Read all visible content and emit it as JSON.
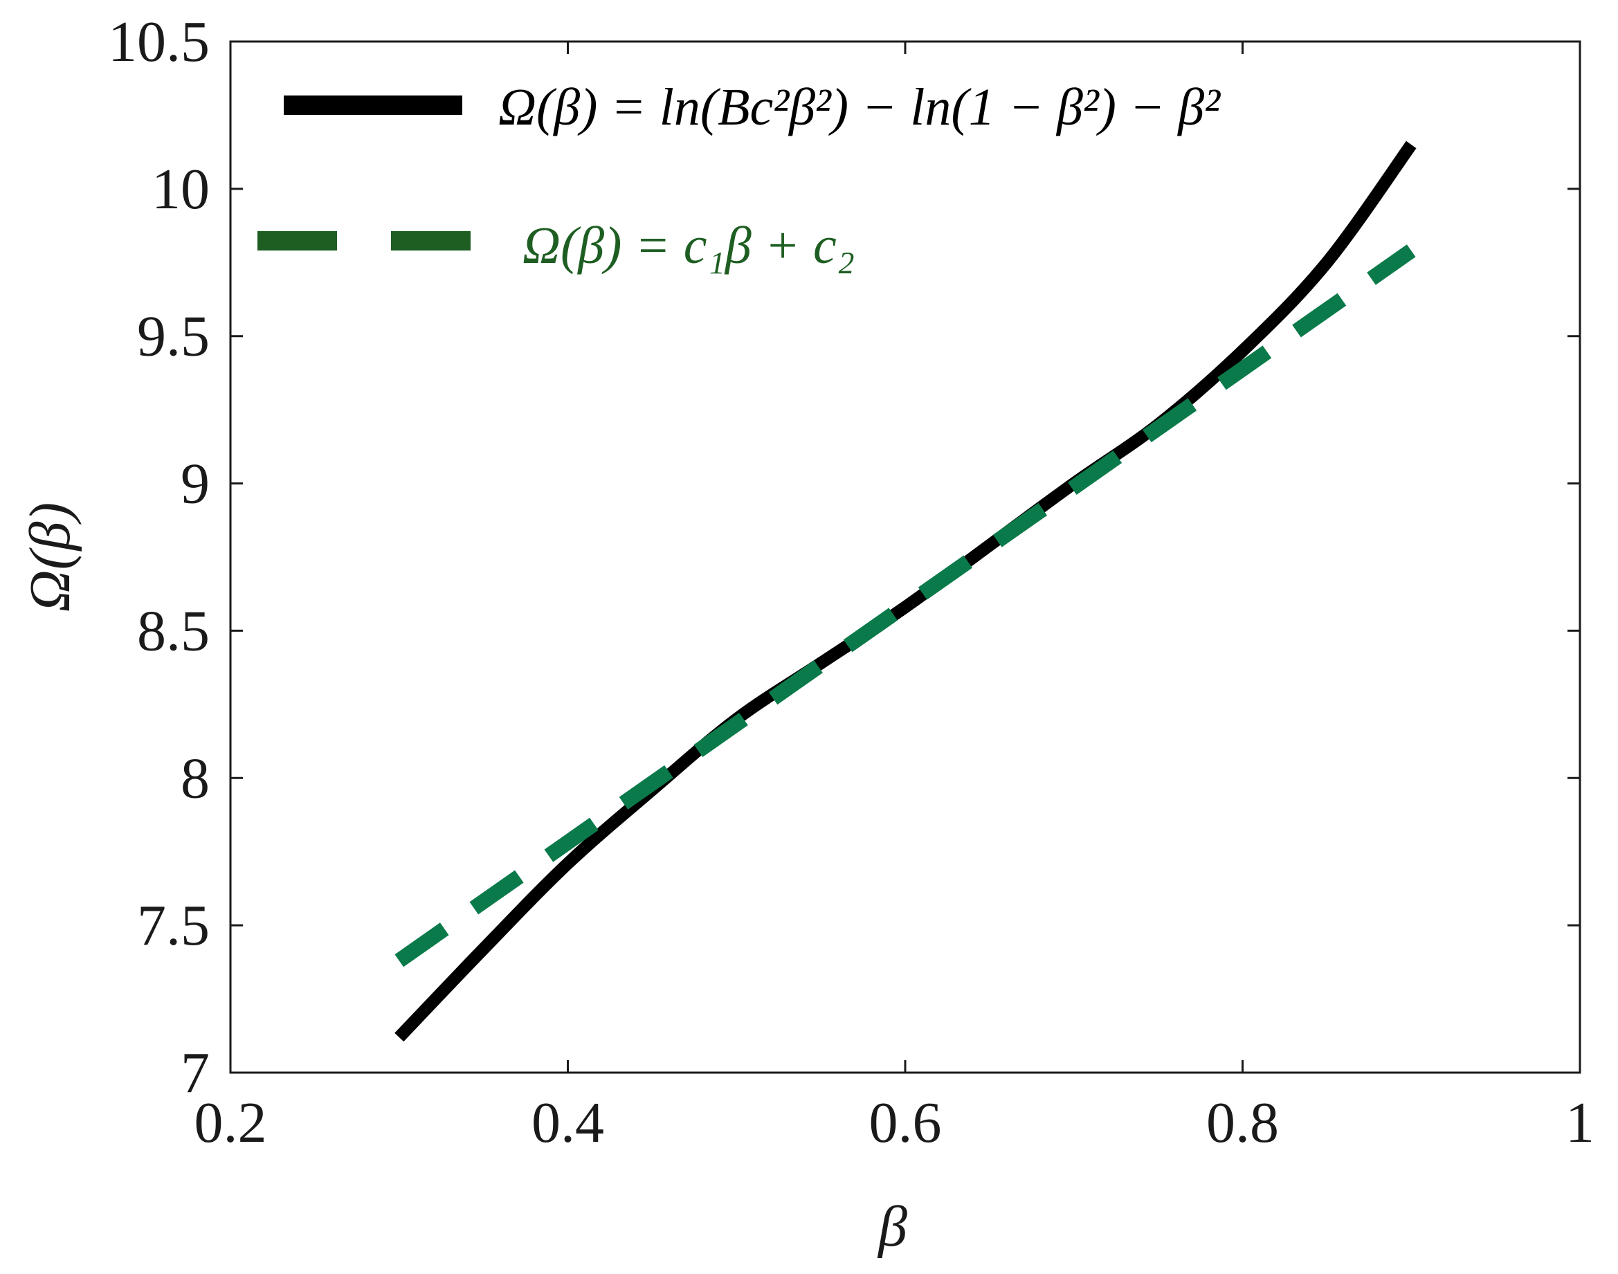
{
  "chart_data": {
    "type": "line",
    "xlabel": "β",
    "ylabel": "Ω(β)",
    "xlim": [
      0.2,
      1.0
    ],
    "ylim": [
      7.0,
      10.5
    ],
    "xticks": [
      0.2,
      0.4,
      0.6,
      0.8,
      1.0
    ],
    "xtick_labels": [
      "0.2",
      "0.4",
      "0.6",
      "0.8",
      "1"
    ],
    "yticks": [
      7.0,
      7.5,
      8.0,
      8.5,
      9.0,
      9.5,
      10.0,
      10.5
    ],
    "ytick_labels": [
      "7",
      "7.5",
      "8",
      "8.5",
      "9",
      "9.5",
      "10",
      "10.5"
    ],
    "grid": false,
    "legend_position": "top-left",
    "series": [
      {
        "name": "Ω(β) = ln(Bc²β²) − ln(1 − β²) − β²",
        "style": "solid",
        "color": "#000000",
        "x": [
          0.3,
          0.35,
          0.4,
          0.45,
          0.5,
          0.55,
          0.6,
          0.65,
          0.7,
          0.75,
          0.8,
          0.85,
          0.9
        ],
        "y": [
          7.12,
          7.42,
          7.71,
          7.96,
          8.2,
          8.39,
          8.58,
          8.79,
          9.0,
          9.2,
          9.45,
          9.75,
          10.15
        ]
      },
      {
        "name": "Ω(β) = c₁β + c₂",
        "style": "dashed",
        "color": "#0a7a4a",
        "x": [
          0.3,
          0.9
        ],
        "y": [
          7.38,
          9.79
        ]
      }
    ]
  },
  "colors": {
    "axis": "#1a1a1a",
    "legend_dashed_sample": "#1e5e22",
    "legend_dashed_text": "#1e5e22"
  }
}
